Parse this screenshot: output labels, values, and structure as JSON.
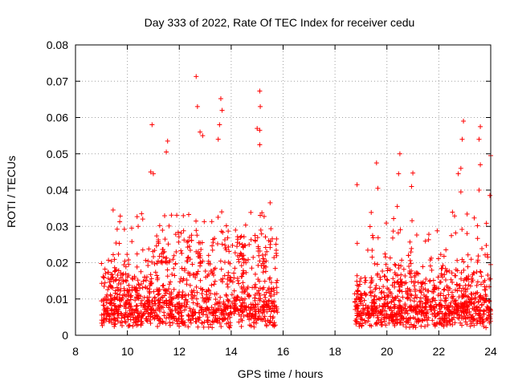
{
  "chart_data": {
    "type": "scatter",
    "title": "Day 333 of 2022, Rate Of TEC Index for receiver cedu",
    "xlabel": "GPS time / hours",
    "ylabel": "ROTI / TECUs",
    "xlim": [
      8,
      24
    ],
    "ylim": [
      0,
      0.08
    ],
    "x_ticks": [
      8,
      10,
      12,
      14,
      16,
      18,
      20,
      22,
      24
    ],
    "x_tick_labels": [
      "8",
      "10",
      "12",
      "14",
      "16",
      "18",
      "20",
      "22",
      "24"
    ],
    "y_ticks": [
      0,
      0.01,
      0.02,
      0.03,
      0.04,
      0.05,
      0.06,
      0.07,
      0.08
    ],
    "y_tick_labels": [
      "0",
      "0.01",
      "0.02",
      "0.03",
      "0.04",
      "0.05",
      "0.06",
      "0.07",
      "0.08"
    ],
    "grid": true,
    "marker": "+",
    "color": "#ff0000",
    "series": [
      {
        "name": "ROTI",
        "segments": [
          {
            "start": 9.0,
            "end": 15.8,
            "typical_range": [
              0.002,
              0.025
            ]
          },
          {
            "start": 18.75,
            "end": 24.0,
            "typical_range": [
              0.002,
              0.02
            ]
          }
        ],
        "notable_points": [
          {
            "x": 9.45,
            "y": 0.0345
          },
          {
            "x": 10.05,
            "y": 0.0195
          },
          {
            "x": 10.95,
            "y": 0.058
          },
          {
            "x": 10.9,
            "y": 0.045
          },
          {
            "x": 11.0,
            "y": 0.0445
          },
          {
            "x": 11.55,
            "y": 0.0535
          },
          {
            "x": 11.5,
            "y": 0.0505
          },
          {
            "x": 12.65,
            "y": 0.0713
          },
          {
            "x": 12.7,
            "y": 0.063
          },
          {
            "x": 12.8,
            "y": 0.056
          },
          {
            "x": 12.9,
            "y": 0.055
          },
          {
            "x": 13.6,
            "y": 0.0652
          },
          {
            "x": 13.65,
            "y": 0.062
          },
          {
            "x": 13.55,
            "y": 0.058
          },
          {
            "x": 13.5,
            "y": 0.054
          },
          {
            "x": 15.1,
            "y": 0.0673
          },
          {
            "x": 15.12,
            "y": 0.063
          },
          {
            "x": 15.0,
            "y": 0.057
          },
          {
            "x": 15.1,
            "y": 0.0565
          },
          {
            "x": 15.1,
            "y": 0.0525
          },
          {
            "x": 15.5,
            "y": 0.0365
          },
          {
            "x": 18.85,
            "y": 0.0415
          },
          {
            "x": 19.6,
            "y": 0.0475
          },
          {
            "x": 19.65,
            "y": 0.0405
          },
          {
            "x": 20.5,
            "y": 0.05
          },
          {
            "x": 20.45,
            "y": 0.0445
          },
          {
            "x": 20.4,
            "y": 0.0355
          },
          {
            "x": 21.0,
            "y": 0.0447
          },
          {
            "x": 20.95,
            "y": 0.041
          },
          {
            "x": 22.75,
            "y": 0.0445
          },
          {
            "x": 22.95,
            "y": 0.059
          },
          {
            "x": 22.9,
            "y": 0.054
          },
          {
            "x": 22.85,
            "y": 0.046
          },
          {
            "x": 22.85,
            "y": 0.0395
          },
          {
            "x": 23.6,
            "y": 0.0575
          },
          {
            "x": 23.55,
            "y": 0.054
          },
          {
            "x": 23.6,
            "y": 0.047
          },
          {
            "x": 23.55,
            "y": 0.04
          },
          {
            "x": 23.97,
            "y": 0.0385
          },
          {
            "x": 24.0,
            "y": 0.0495
          }
        ]
      }
    ]
  }
}
